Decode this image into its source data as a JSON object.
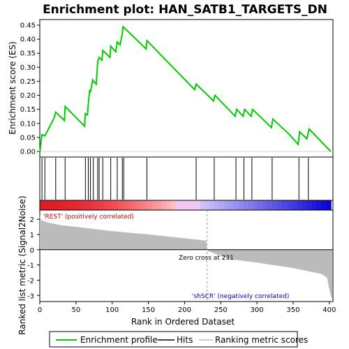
{
  "chart_data": [
    {
      "type": "line",
      "title": "Enrichment plot: HAN_SATB1_TARGETS_DN",
      "ylabel": "Enrichment score (ES)",
      "xlim": [
        0,
        405
      ],
      "ylim": [
        -0.02,
        0.47
      ],
      "y_ticks": [
        "0.00",
        "0.05",
        "0.10",
        "0.15",
        "0.20",
        "0.25",
        "0.30",
        "0.35",
        "0.40",
        "0.45"
      ],
      "series": [
        {
          "name": "Enrichment profile",
          "color": "#00cc00",
          "x": [
            0,
            3,
            7,
            20,
            22,
            34,
            35,
            62,
            63,
            66,
            67,
            69,
            70,
            73,
            74,
            78,
            80,
            82,
            86,
            87,
            97,
            98,
            105,
            107,
            111,
            114,
            115,
            147,
            148,
            214,
            216,
            240,
            242,
            270,
            272,
            281,
            283,
            292,
            294,
            320,
            322,
            345,
            357,
            359,
            369,
            372,
            402
          ],
          "y": [
            -0.005,
            0.06,
            0.055,
            0.12,
            0.14,
            0.11,
            0.16,
            0.09,
            0.135,
            0.13,
            0.17,
            0.22,
            0.21,
            0.255,
            0.25,
            0.24,
            0.32,
            0.335,
            0.325,
            0.36,
            0.335,
            0.375,
            0.355,
            0.39,
            0.38,
            0.42,
            0.445,
            0.365,
            0.395,
            0.22,
            0.24,
            0.18,
            0.2,
            0.125,
            0.15,
            0.125,
            0.15,
            0.125,
            0.15,
            0.085,
            0.115,
            0.06,
            0.025,
            0.07,
            0.045,
            0.08,
            0.0
          ]
        }
      ]
    },
    {
      "type": "hits",
      "hit_ranks": [
        3,
        7,
        22,
        35,
        63,
        67,
        70,
        74,
        80,
        82,
        87,
        98,
        107,
        114,
        116,
        148,
        216,
        241,
        271,
        282,
        293,
        321,
        358,
        371
      ]
    },
    {
      "type": "area",
      "xlabel": "Rank in Ordered Dataset",
      "ylabel": "Ranked list metric (Signal2Noise)",
      "xlim": [
        0,
        405
      ],
      "ylim": [
        -3.4,
        2.6
      ],
      "x_ticks": [
        "0",
        "50",
        "100",
        "150",
        "200",
        "250",
        "300",
        "350",
        "400"
      ],
      "y_ticks": [
        "-3",
        "-2",
        "-1",
        "0",
        "1",
        "2"
      ],
      "series": [
        {
          "name": "Ranking metric scores",
          "color": "#bbbbbb",
          "x": [
            0,
            2,
            10,
            30,
            50,
            100,
            150,
            200,
            230,
            231,
            260,
            300,
            350,
            390,
            397,
            400,
            402,
            404
          ],
          "y": [
            2.25,
            1.95,
            1.8,
            1.6,
            1.5,
            1.22,
            1.0,
            0.75,
            0.6,
            -0.05,
            -0.6,
            -0.85,
            -1.2,
            -1.6,
            -1.85,
            -2.6,
            -3.0,
            -3.3
          ]
        }
      ],
      "zero_cross": 231
    }
  ],
  "annotations": {
    "positive": "'REST' (positively correlated)",
    "negative": "'shSCR' (negatively correlated)",
    "zero_cross": "Zero cross at 231"
  },
  "legend": {
    "items": [
      {
        "label": "Enrichment profile",
        "color": "#00cc00"
      },
      {
        "label": "Hits",
        "color": "#000000"
      },
      {
        "label": "Ranking metric scores",
        "color": "#bbbbbb"
      }
    ]
  },
  "colors": {
    "positive_annotation": "#cc0000",
    "negative_annotation": "#0000cc",
    "frame": "#000000"
  }
}
